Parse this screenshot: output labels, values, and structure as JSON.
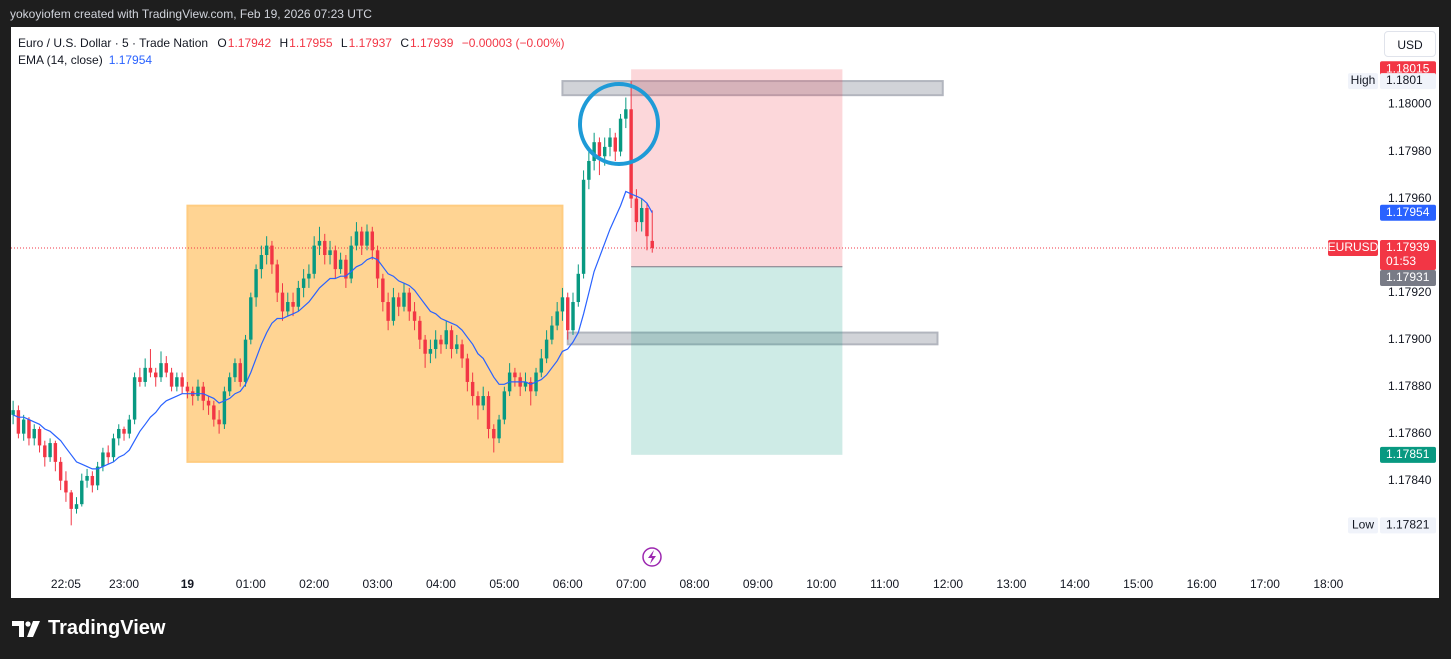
{
  "header": "yokoyiofem created with TradingView.com, Feb 19, 2026 07:23 UTC",
  "brand": "TradingView",
  "chart_data": {
    "type": "candlestick",
    "title": "Euro / U.S. Dollar · 5 · Trade Nation",
    "legend_keys": [
      "O",
      "H",
      "L",
      "C"
    ],
    "change": "−0.00003 (−0.00%)",
    "currency": "USD",
    "symbol": "EURUSD",
    "countdown": "01:53",
    "high_tag": "High",
    "low_tag": "Low",
    "up_color": "#089981",
    "down_color": "#f23645",
    "grid": false,
    "xlim": [
      "21:13",
      "18:47"
    ],
    "xticks": [
      "22:05",
      "23:00",
      {
        "value": "00:00",
        "label": "19"
      },
      "01:00",
      "02:00",
      "03:00",
      "04:00",
      "05:00",
      "06:00",
      "07:00",
      "08:00",
      "09:00",
      "10:00",
      "11:00",
      "12:00",
      "13:00",
      "14:00",
      "15:00",
      "16:00",
      "17:00",
      "18:00"
    ],
    "ylim": [
      1.17802,
      1.18033
    ],
    "yticks": [
      {
        "value": 1.1784,
        "label": "1.17840"
      },
      {
        "value": 1.1786,
        "label": "1.17860"
      },
      {
        "value": 1.1788,
        "label": "1.17880"
      },
      {
        "value": 1.179,
        "label": "1.17900"
      },
      {
        "value": 1.1792,
        "label": "1.17920"
      },
      {
        "value": 1.1796,
        "label": "1.17960"
      },
      {
        "value": 1.1798,
        "label": "1.17980"
      },
      {
        "value": 1.18,
        "label": "1.18000"
      }
    ],
    "x": [
      "21:15",
      "21:20",
      "21:25",
      "21:30",
      "21:35",
      "21:40",
      "21:45",
      "21:50",
      "21:55",
      "22:00",
      "22:05",
      "22:10",
      "22:15",
      "22:20",
      "22:25",
      "22:30",
      "22:35",
      "22:40",
      "22:45",
      "22:50",
      "22:55",
      "23:00",
      "23:05",
      "23:10",
      "23:15",
      "23:20",
      "23:25",
      "23:30",
      "23:35",
      "23:40",
      "23:45",
      "23:50",
      "23:55",
      "00:00",
      "00:05",
      "00:10",
      "00:15",
      "00:20",
      "00:25",
      "00:30",
      "00:35",
      "00:40",
      "00:45",
      "00:50",
      "00:55",
      "01:00",
      "01:05",
      "01:10",
      "01:15",
      "01:20",
      "01:25",
      "01:30",
      "01:35",
      "01:40",
      "01:45",
      "01:50",
      "01:55",
      "02:00",
      "02:05",
      "02:10",
      "02:15",
      "02:20",
      "02:25",
      "02:30",
      "02:35",
      "02:40",
      "02:45",
      "02:50",
      "02:55",
      "03:00",
      "03:05",
      "03:10",
      "03:15",
      "03:20",
      "03:25",
      "03:30",
      "03:35",
      "03:40",
      "03:45",
      "03:50",
      "03:55",
      "04:00",
      "04:05",
      "04:10",
      "04:15",
      "04:20",
      "04:25",
      "04:30",
      "04:35",
      "04:40",
      "04:45",
      "04:50",
      "04:55",
      "05:00",
      "05:05",
      "05:10",
      "05:15",
      "05:20",
      "05:25",
      "05:30",
      "05:35",
      "05:40",
      "05:45",
      "05:50",
      "05:55",
      "06:00",
      "06:05",
      "06:10",
      "06:15",
      "06:20",
      "06:25",
      "06:30",
      "06:35",
      "06:40",
      "06:45",
      "06:50",
      "06:55",
      "07:00",
      "07:05",
      "07:10",
      "07:15",
      "07:20"
    ],
    "open": [
      1.17868,
      1.1787,
      1.1786,
      1.17866,
      1.17858,
      1.17862,
      1.17855,
      1.1785,
      1.17856,
      1.17848,
      1.1784,
      1.17835,
      1.17828,
      1.1783,
      1.1784,
      1.17842,
      1.17838,
      1.17846,
      1.17852,
      1.1785,
      1.17858,
      1.17862,
      1.1786,
      1.17866,
      1.17884,
      1.17882,
      1.17888,
      1.17886,
      1.17884,
      1.1789,
      1.17886,
      1.1788,
      1.17884,
      1.1788,
      1.17878,
      1.17876,
      1.1788,
      1.17874,
      1.17872,
      1.17866,
      1.17864,
      1.17878,
      1.17884,
      1.1789,
      1.17882,
      1.179,
      1.17918,
      1.1793,
      1.17936,
      1.1794,
      1.17932,
      1.1792,
      1.17912,
      1.17916,
      1.17914,
      1.17922,
      1.17926,
      1.17928,
      1.1794,
      1.17942,
      1.17936,
      1.17938,
      1.1793,
      1.17934,
      1.17926,
      1.1794,
      1.17946,
      1.1794,
      1.17946,
      1.17938,
      1.17926,
      1.17916,
      1.17908,
      1.17918,
      1.17914,
      1.1792,
      1.17912,
      1.17908,
      1.179,
      1.17894,
      1.17896,
      1.179,
      1.17898,
      1.17904,
      1.17896,
      1.17898,
      1.17892,
      1.17882,
      1.17876,
      1.17872,
      1.17876,
      1.17862,
      1.17858,
      1.17866,
      1.17878,
      1.17886,
      1.17884,
      1.1788,
      1.17882,
      1.17878,
      1.17886,
      1.17892,
      1.179,
      1.17906,
      1.17912,
      1.17918,
      1.17904,
      1.17916,
      1.17928,
      1.17968,
      1.17976,
      1.17984,
      1.17978,
      1.17982,
      1.17986,
      1.1798,
      1.17994,
      1.17998,
      1.1796,
      1.1795,
      1.17956,
      1.17942
    ],
    "high": [
      1.17874,
      1.17872,
      1.17868,
      1.17867,
      1.17864,
      1.17863,
      1.17857,
      1.17858,
      1.17857,
      1.1785,
      1.17844,
      1.17836,
      1.17833,
      1.17843,
      1.17845,
      1.17844,
      1.17848,
      1.17854,
      1.17855,
      1.1786,
      1.17864,
      1.17863,
      1.17868,
      1.17886,
      1.17888,
      1.17892,
      1.17896,
      1.17888,
      1.17895,
      1.17893,
      1.17888,
      1.17886,
      1.17886,
      1.17882,
      1.1788,
      1.17883,
      1.17882,
      1.17876,
      1.17874,
      1.1787,
      1.1788,
      1.17886,
      1.17892,
      1.17892,
      1.17902,
      1.1792,
      1.17932,
      1.1794,
      1.17944,
      1.17942,
      1.17934,
      1.17924,
      1.1792,
      1.1792,
      1.17925,
      1.1793,
      1.17932,
      1.17944,
      1.17948,
      1.17945,
      1.17942,
      1.1794,
      1.17937,
      1.17936,
      1.17944,
      1.1795,
      1.17948,
      1.17949,
      1.17948,
      1.1794,
      1.17928,
      1.1792,
      1.17922,
      1.1792,
      1.17924,
      1.17922,
      1.17916,
      1.1791,
      1.17902,
      1.179,
      1.17904,
      1.17902,
      1.17908,
      1.17906,
      1.17902,
      1.179,
      1.17894,
      1.17886,
      1.17878,
      1.1788,
      1.17878,
      1.17864,
      1.17868,
      1.1788,
      1.1789,
      1.17888,
      1.17886,
      1.17886,
      1.17884,
      1.17888,
      1.17896,
      1.17904,
      1.1791,
      1.17916,
      1.17922,
      1.1792,
      1.1792,
      1.17932,
      1.17972,
      1.1798,
      1.17988,
      1.17986,
      1.17986,
      1.1799,
      1.17988,
      1.17996,
      1.18003,
      1.1801,
      1.17964,
      1.1796,
      1.17958,
      1.17955
    ],
    "low": [
      1.17864,
      1.17858,
      1.17857,
      1.17855,
      1.17855,
      1.17852,
      1.17846,
      1.17848,
      1.17844,
      1.17836,
      1.17831,
      1.17821,
      1.17826,
      1.17829,
      1.17837,
      1.17835,
      1.17836,
      1.17844,
      1.17847,
      1.17848,
      1.17855,
      1.17857,
      1.17858,
      1.17864,
      1.1788,
      1.1788,
      1.17884,
      1.1788,
      1.17882,
      1.17884,
      1.17878,
      1.17878,
      1.17877,
      1.17875,
      1.17872,
      1.17874,
      1.1787,
      1.17868,
      1.17863,
      1.1786,
      1.17862,
      1.17876,
      1.17882,
      1.1788,
      1.1788,
      1.17898,
      1.17914,
      1.17926,
      1.17932,
      1.17928,
      1.17916,
      1.17908,
      1.1791,
      1.1791,
      1.17912,
      1.17918,
      1.17922,
      1.17926,
      1.17936,
      1.17932,
      1.17932,
      1.17926,
      1.17928,
      1.17922,
      1.17924,
      1.17938,
      1.17936,
      1.17938,
      1.17934,
      1.17922,
      1.17912,
      1.17904,
      1.17906,
      1.1791,
      1.17912,
      1.17908,
      1.17904,
      1.17896,
      1.17888,
      1.1789,
      1.17892,
      1.17894,
      1.17896,
      1.17892,
      1.17894,
      1.17888,
      1.17878,
      1.17872,
      1.17866,
      1.1787,
      1.17858,
      1.17852,
      1.17856,
      1.17864,
      1.17876,
      1.1788,
      1.17876,
      1.17878,
      1.17872,
      1.17876,
      1.17884,
      1.1789,
      1.17898,
      1.17904,
      1.17908,
      1.179,
      1.17902,
      1.17914,
      1.17926,
      1.17964,
      1.17972,
      1.1797,
      1.17974,
      1.17978,
      1.17976,
      1.17978,
      1.1799,
      1.17956,
      1.17946,
      1.17946,
      1.17938,
      1.17937
    ],
    "close": [
      1.1787,
      1.1786,
      1.17866,
      1.17858,
      1.17862,
      1.17855,
      1.1785,
      1.17856,
      1.17848,
      1.1784,
      1.17835,
      1.17828,
      1.1783,
      1.1784,
      1.17842,
      1.17838,
      1.17846,
      1.17852,
      1.1785,
      1.17858,
      1.17862,
      1.1786,
      1.17866,
      1.17884,
      1.17882,
      1.17888,
      1.17886,
      1.17884,
      1.1789,
      1.17886,
      1.1788,
      1.17884,
      1.1788,
      1.17878,
      1.17876,
      1.1788,
      1.17874,
      1.17872,
      1.17866,
      1.17864,
      1.17878,
      1.17884,
      1.1789,
      1.17882,
      1.179,
      1.17918,
      1.1793,
      1.17936,
      1.1794,
      1.17932,
      1.1792,
      1.17912,
      1.17916,
      1.17914,
      1.17922,
      1.17926,
      1.17928,
      1.1794,
      1.17942,
      1.17936,
      1.17938,
      1.1793,
      1.17934,
      1.17926,
      1.1794,
      1.17946,
      1.1794,
      1.17946,
      1.17938,
      1.17926,
      1.17916,
      1.17908,
      1.17918,
      1.17914,
      1.1792,
      1.17912,
      1.17908,
      1.179,
      1.17894,
      1.17896,
      1.179,
      1.17898,
      1.17904,
      1.17896,
      1.17898,
      1.17892,
      1.17882,
      1.17876,
      1.17872,
      1.17876,
      1.17862,
      1.17858,
      1.17866,
      1.17878,
      1.17886,
      1.17884,
      1.1788,
      1.17882,
      1.17878,
      1.17886,
      1.17892,
      1.179,
      1.17906,
      1.17912,
      1.17918,
      1.17904,
      1.17916,
      1.17928,
      1.17968,
      1.17976,
      1.17984,
      1.17978,
      1.17982,
      1.17986,
      1.1798,
      1.17994,
      1.17998,
      1.1796,
      1.1795,
      1.17956,
      1.17944,
      1.17939
    ],
    "ema": {
      "name": "EMA (14, close)",
      "color": "#2962ff",
      "values": [
        1.17868,
        1.17867,
        1.17867,
        1.17866,
        1.17865,
        1.17864,
        1.17862,
        1.17861,
        1.17859,
        1.17857,
        1.17854,
        1.17851,
        1.17848,
        1.17847,
        1.17846,
        1.17845,
        1.17845,
        1.17846,
        1.17847,
        1.17848,
        1.1785,
        1.17851,
        1.17853,
        1.17857,
        1.17861,
        1.17864,
        1.17867,
        1.17869,
        1.17872,
        1.17874,
        1.17875,
        1.17876,
        1.17877,
        1.17877,
        1.17877,
        1.17877,
        1.17877,
        1.17876,
        1.17875,
        1.17873,
        1.17874,
        1.17875,
        1.17877,
        1.17878,
        1.17881,
        1.17886,
        1.17892,
        1.17898,
        1.17903,
        1.17907,
        1.17909,
        1.17909,
        1.1791,
        1.17911,
        1.17912,
        1.17914,
        1.17916,
        1.17919,
        1.17922,
        1.17924,
        1.17926,
        1.17926,
        1.17927,
        1.17927,
        1.17929,
        1.17931,
        1.17932,
        1.17934,
        1.17935,
        1.17934,
        1.17931,
        1.17928,
        1.17927,
        1.17925,
        1.17924,
        1.17923,
        1.17921,
        1.17918,
        1.17915,
        1.17912,
        1.17911,
        1.17909,
        1.17908,
        1.17907,
        1.17906,
        1.17904,
        1.17901,
        1.17898,
        1.17894,
        1.17892,
        1.17888,
        1.17884,
        1.17881,
        1.17881,
        1.17882,
        1.17882,
        1.17882,
        1.17882,
        1.17881,
        1.17882,
        1.17883,
        1.17885,
        1.17888,
        1.17891,
        1.17895,
        1.17896,
        1.17899,
        1.17903,
        1.17911,
        1.1792,
        1.17929,
        1.17935,
        1.17941,
        1.17947,
        1.17952,
        1.17957,
        1.17963,
        1.17962,
        1.17961,
        1.1796,
        1.17958,
        1.17954
      ]
    },
    "zones": [
      {
        "start": "00:00",
        "end": "05:55",
        "top": 1.17957,
        "bottom": 1.17848,
        "color": "#ffcc80"
      },
      {
        "start": "05:55",
        "end": "11:55",
        "top": 1.1801,
        "bottom": 1.18004,
        "color": "#b2b5be"
      },
      {
        "start": "06:00",
        "end": "11:50",
        "top": 1.17903,
        "bottom": 1.17898,
        "color": "#b2b5be"
      }
    ],
    "position": {
      "start": "07:00",
      "end": "10:20",
      "stop": 1.18015,
      "entry": 1.17931,
      "target": 1.17851
    }
  }
}
